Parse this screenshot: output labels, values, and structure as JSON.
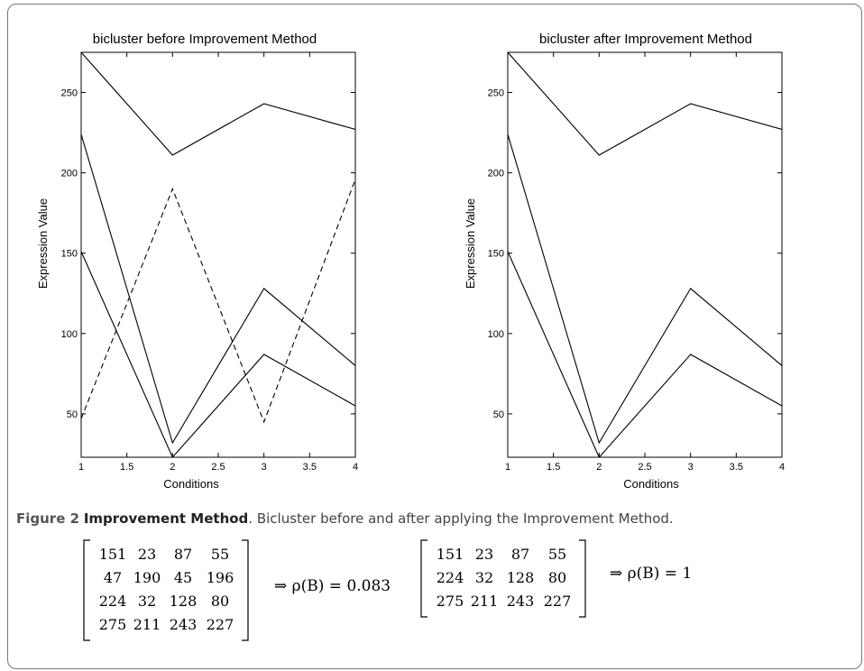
{
  "charts": [
    {
      "title": "bicluster before Improvement Method",
      "xlabel": "Conditions",
      "ylabel": "Expression Value",
      "xlim": [
        1,
        4
      ],
      "ylim": [
        23,
        275
      ],
      "xticks": [
        "1",
        "1.5",
        "2",
        "2.5",
        "3",
        "3.5",
        "4"
      ],
      "yticks": [
        "50",
        "100",
        "150",
        "200",
        "250"
      ]
    },
    {
      "title": "bicluster after Improvement Method",
      "xlabel": "Conditions",
      "ylabel": "Expression Value",
      "xlim": [
        1,
        4
      ],
      "ylim": [
        23,
        275
      ],
      "xticks": [
        "1",
        "1.5",
        "2",
        "2.5",
        "3",
        "3.5",
        "4"
      ],
      "yticks": [
        "50",
        "100",
        "150",
        "200",
        "250"
      ]
    }
  ],
  "chart_data": [
    {
      "type": "line",
      "title": "bicluster before Improvement Method",
      "xlabel": "Conditions",
      "ylabel": "Expression Value",
      "x": [
        1,
        2,
        3,
        4
      ],
      "xlim": [
        1,
        4
      ],
      "ylim": [
        23,
        275
      ],
      "grid": false,
      "series": [
        {
          "values": [
            151,
            23,
            87,
            55
          ],
          "style": "solid"
        },
        {
          "values": [
            47,
            190,
            45,
            196
          ],
          "style": "dashed"
        },
        {
          "values": [
            224,
            32,
            128,
            80
          ],
          "style": "solid"
        },
        {
          "values": [
            275,
            211,
            243,
            227
          ],
          "style": "solid"
        }
      ]
    },
    {
      "type": "line",
      "title": "bicluster after Improvement Method",
      "xlabel": "Conditions",
      "ylabel": "Expression Value",
      "x": [
        1,
        2,
        3,
        4
      ],
      "xlim": [
        1,
        4
      ],
      "ylim": [
        23,
        275
      ],
      "grid": false,
      "series": [
        {
          "values": [
            151,
            23,
            87,
            55
          ],
          "style": "solid"
        },
        {
          "values": [
            224,
            32,
            128,
            80
          ],
          "style": "solid"
        },
        {
          "values": [
            275,
            211,
            243,
            227
          ],
          "style": "solid"
        }
      ]
    }
  ],
  "caption": {
    "label": "Figure 2",
    "title": "Improvement Method",
    "text": ". Bicluster before and after applying the Improvement Method."
  },
  "matrices": [
    {
      "rows": [
        [
          "151",
          "23",
          "87",
          "55"
        ],
        [
          "47",
          "190",
          "45",
          "196"
        ],
        [
          "224",
          "32",
          "128",
          "80"
        ],
        [
          "275",
          "211",
          "243",
          "227"
        ]
      ],
      "result": "⇒ ρ(B) = 0.083"
    },
    {
      "rows": [
        [
          "151",
          "23",
          "87",
          "55"
        ],
        [
          "224",
          "32",
          "128",
          "80"
        ],
        [
          "275",
          "211",
          "243",
          "227"
        ]
      ],
      "result": "⇒ ρ(B) = 1"
    }
  ]
}
